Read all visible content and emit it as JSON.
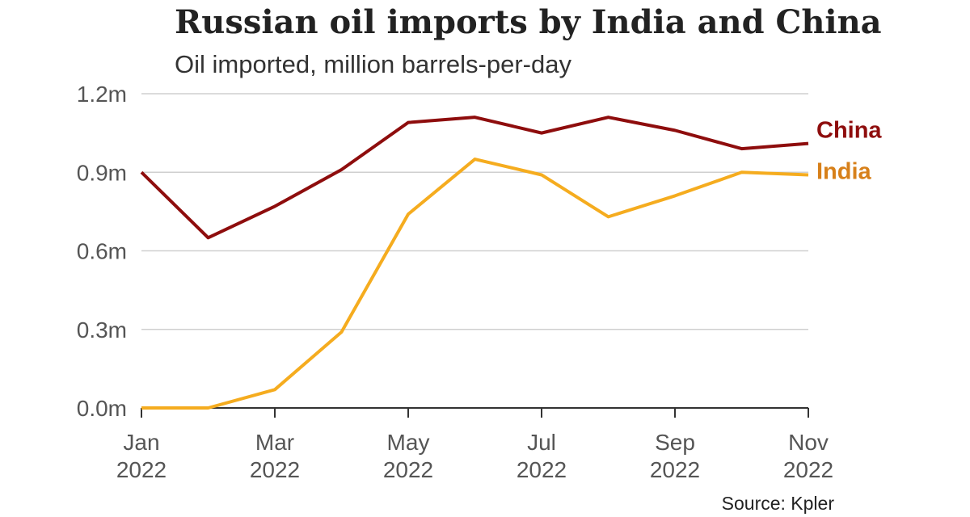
{
  "chart_data": {
    "type": "line",
    "title": "Russian oil imports by India and China",
    "subtitle": "Oil imported, million barrels-per-day",
    "source": "Source: Kpler",
    "xlabel": "",
    "ylabel": "",
    "x": [
      "Jan 2022",
      "Feb 2022",
      "Mar 2022",
      "Apr 2022",
      "May 2022",
      "Jun 2022",
      "Jul 2022",
      "Aug 2022",
      "Sep 2022",
      "Oct 2022",
      "Nov 2022"
    ],
    "x_ticks": [
      {
        "index": 0,
        "line1": "Jan",
        "line2": "2022"
      },
      {
        "index": 2,
        "line1": "Mar",
        "line2": "2022"
      },
      {
        "index": 4,
        "line1": "May",
        "line2": "2022"
      },
      {
        "index": 6,
        "line1": "Jul",
        "line2": "2022"
      },
      {
        "index": 8,
        "line1": "Sep",
        "line2": "2022"
      },
      {
        "index": 10,
        "line1": "Nov",
        "line2": "2022"
      }
    ],
    "y_ticks": [
      {
        "value": 0.0,
        "label": "0.0m"
      },
      {
        "value": 0.3,
        "label": "0.3m"
      },
      {
        "value": 0.6,
        "label": "0.6m"
      },
      {
        "value": 0.9,
        "label": "0.9m"
      },
      {
        "value": 1.2,
        "label": "1.2m"
      }
    ],
    "ylim": [
      0,
      1.2
    ],
    "grid": true,
    "series": [
      {
        "name": "China",
        "color": "#8e0d0d",
        "label_color": "#8e0d0d",
        "values": [
          0.9,
          0.65,
          0.77,
          0.91,
          1.09,
          1.11,
          1.05,
          1.11,
          1.06,
          0.99,
          1.01
        ]
      },
      {
        "name": "India",
        "color": "#f5ac1f",
        "label_color": "#d7801a",
        "values": [
          0.0,
          0.0,
          0.07,
          0.29,
          0.74,
          0.95,
          0.89,
          0.73,
          0.81,
          0.9,
          0.89
        ]
      }
    ]
  }
}
